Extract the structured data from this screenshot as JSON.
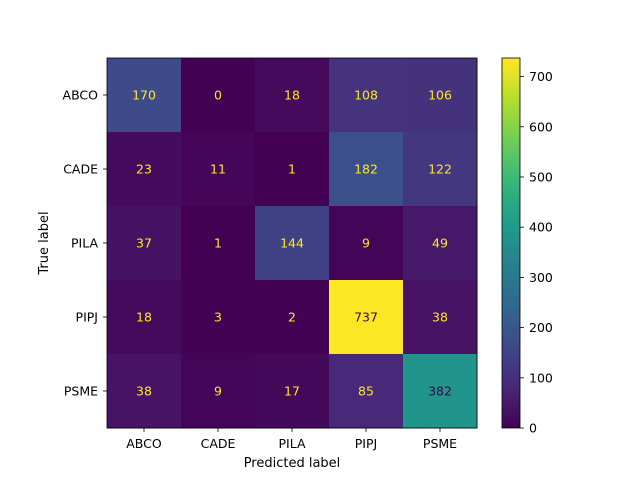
{
  "chart_data": {
    "type": "heatmap",
    "title": "",
    "xlabel": "Predicted label",
    "ylabel": "True label",
    "x_categories": [
      "ABCO",
      "CADE",
      "PILA",
      "PIPJ",
      "PSME"
    ],
    "y_categories": [
      "ABCO",
      "CADE",
      "PILA",
      "PIPJ",
      "PSME"
    ],
    "values": [
      [
        170,
        0,
        18,
        108,
        106
      ],
      [
        23,
        11,
        1,
        182,
        122
      ],
      [
        37,
        1,
        144,
        9,
        49
      ],
      [
        18,
        3,
        2,
        737,
        38
      ],
      [
        38,
        9,
        17,
        85,
        382
      ]
    ],
    "colormap": "viridis",
    "colorbar": {
      "range": [
        0,
        737
      ],
      "ticks": [
        0,
        100,
        200,
        300,
        400,
        500,
        600,
        700
      ]
    },
    "text_colors": {
      "on_dark": "#fde725",
      "on_light": "#440154"
    },
    "grid": false
  }
}
